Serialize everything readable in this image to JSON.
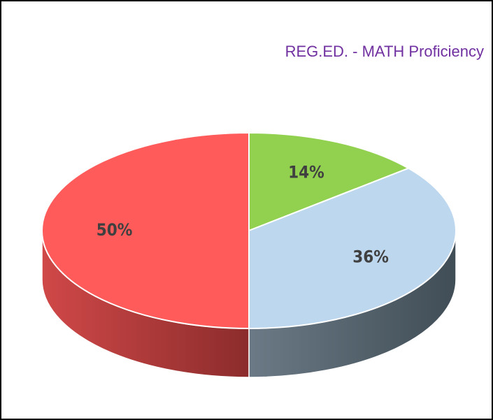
{
  "chart_data": {
    "type": "pie",
    "title": "REG.ED. - MATH Proficiency",
    "values": [
      14,
      36,
      50
    ],
    "value_labels": [
      "14%",
      "36%",
      "50%"
    ],
    "colors": [
      "#92d050",
      "#bdd7ee",
      "#ff5b5b"
    ]
  }
}
